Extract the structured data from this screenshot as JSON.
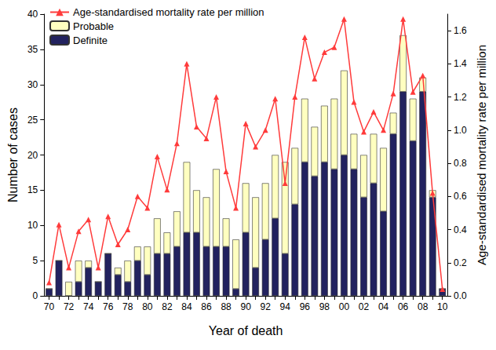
{
  "chart_data": {
    "type": "bar",
    "x_label": "Year of death",
    "y_label": "Number of cases",
    "y2_label": "Age-standardised mortality rate per million",
    "categories": [
      "70",
      null,
      "72",
      null,
      "74",
      null,
      "76",
      null,
      "78",
      null,
      "80",
      null,
      "82",
      null,
      "84",
      null,
      "86",
      null,
      "88",
      null,
      "90",
      null,
      "92",
      null,
      "94",
      null,
      "96",
      null,
      "98",
      null,
      "00",
      null,
      "02",
      null,
      "04",
      null,
      "06",
      null,
      "08",
      null,
      "10"
    ],
    "stacked": true,
    "grid": false,
    "legend": "top-left",
    "ylim": [
      0,
      40
    ],
    "yticks": [
      0,
      5,
      10,
      15,
      20,
      25,
      30,
      35,
      40
    ],
    "y2lim": [
      0,
      1.7
    ],
    "y2ticks": [
      {
        "value": 0,
        "label": "0.0"
      },
      {
        "value": 0.2,
        "label": "0.2"
      },
      {
        "value": 0.4,
        "label": "0.4"
      },
      {
        "value": 0.6,
        "label": "0.6"
      },
      {
        "value": 0.8,
        "label": "0.8"
      },
      {
        "value": 1,
        "label": "1.0"
      },
      {
        "value": 1.2,
        "label": "1.2"
      },
      {
        "value": 1.4,
        "label": "1.4"
      },
      {
        "value": 1.6,
        "label": "1.6"
      }
    ],
    "series": [
      {
        "name": "Age-standardised mortality rate per million",
        "type": "line",
        "axis": "y2",
        "color": "#ff3b3b",
        "marker": "triangle",
        "values": [
          0.08,
          0.43,
          0.17,
          0.39,
          0.46,
          0.17,
          0.48,
          0.31,
          0.4,
          0.6,
          0.53,
          0.84,
          0.64,
          0.92,
          1.4,
          1.02,
          0.95,
          1.2,
          0.75,
          0.53,
          1.04,
          0.9,
          1.0,
          1.19,
          0.68,
          1.2,
          1.56,
          1.31,
          1.47,
          1.5,
          1.67,
          1.17,
          0.99,
          1.11,
          1.0,
          1.22,
          1.67,
          1.23,
          1.33,
          0.62,
          0.04
        ]
      },
      {
        "name": "Probable",
        "type": "bar",
        "color": "#ffffc0",
        "values": [
          0,
          0,
          2,
          3,
          1,
          0,
          0,
          1,
          3,
          2,
          4,
          5,
          3,
          5,
          10,
          6,
          7,
          11,
          4,
          7,
          7,
          10,
          8,
          9,
          13,
          8,
          9,
          7,
          8,
          10,
          12,
          5,
          6,
          7,
          9,
          3,
          8,
          6,
          2,
          1,
          0
        ]
      },
      {
        "name": "Definite",
        "type": "bar",
        "color": "#22225f",
        "values": [
          1,
          5,
          0,
          2,
          4,
          2,
          6,
          3,
          2,
          5,
          3,
          6,
          6,
          7,
          9,
          9,
          7,
          7,
          7,
          1,
          9,
          4,
          8,
          11,
          6,
          13,
          19,
          17,
          19,
          18,
          20,
          18,
          14,
          16,
          12,
          23,
          29,
          22,
          29,
          14,
          1
        ]
      }
    ]
  }
}
